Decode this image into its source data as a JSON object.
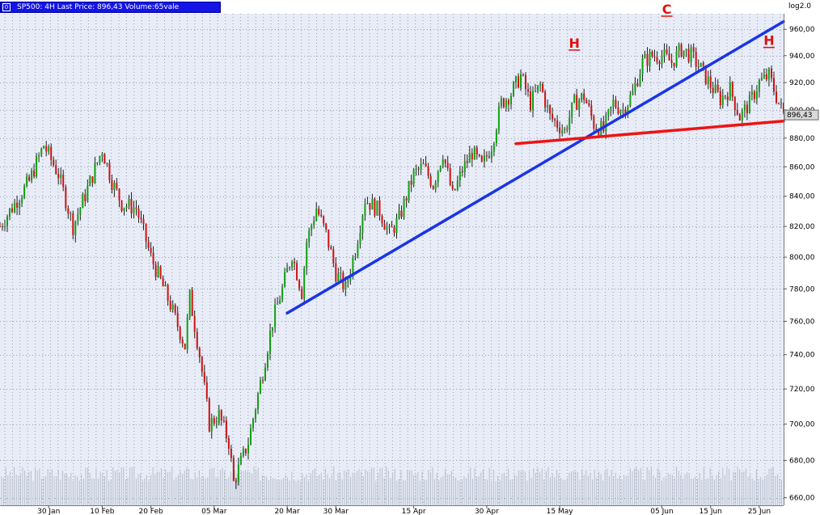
{
  "window": {
    "title": "SP500: 4H Last Price: 896,43 Volume:65vale",
    "scale_mode": "log2.0",
    "box_glyph": "0"
  },
  "chart_data": {
    "type": "candlestick",
    "symbol": "SP500",
    "timeframe": "4H",
    "last_price": "896,43",
    "yscale": "log",
    "ylim": [
      656,
      972
    ],
    "ytick_values": [
      660,
      680,
      700,
      720,
      740,
      760,
      780,
      800,
      820,
      840,
      860,
      880,
      900,
      920,
      940,
      960
    ],
    "ytick_labels": [
      "660,00",
      "680,00",
      "700,00",
      "720,00",
      "740,00",
      "760,00",
      "780,00",
      "800,00",
      "820,00",
      "840,00",
      "860,00",
      "880,00",
      "900,00",
      "920,00",
      "940,00",
      "960,00"
    ],
    "xlim": [
      "2009-01-20",
      "2009-06-30"
    ],
    "xticks": [
      {
        "date": "2009-01-30",
        "label": "30 Jan"
      },
      {
        "date": "2009-02-10",
        "label": "10 Feb"
      },
      {
        "date": "2009-02-20",
        "label": "20 Feb"
      },
      {
        "date": "2009-03-05",
        "label": "05 Mar"
      },
      {
        "date": "2009-03-20",
        "label": "20 Mar"
      },
      {
        "date": "2009-03-30",
        "label": "30 Mar"
      },
      {
        "date": "2009-04-15",
        "label": "15 Apr"
      },
      {
        "date": "2009-04-30",
        "label": "30 Apr"
      },
      {
        "date": "2009-05-15",
        "label": "15 May"
      },
      {
        "date": "2009-06-05",
        "label": "05 Jun"
      },
      {
        "date": "2009-06-15",
        "label": "15 Jun"
      },
      {
        "date": "2009-06-25",
        "label": "25 Jun"
      }
    ],
    "grid": true,
    "price_path": [
      [
        "2009-01-20",
        820
      ],
      [
        "2009-01-26",
        850
      ],
      [
        "2009-01-29",
        875
      ],
      [
        "2009-02-01",
        855
      ],
      [
        "2009-02-04",
        820
      ],
      [
        "2009-02-07",
        845
      ],
      [
        "2009-02-10",
        872
      ],
      [
        "2009-02-12",
        850
      ],
      [
        "2009-02-14",
        835
      ],
      [
        "2009-02-17",
        832
      ],
      [
        "2009-02-20",
        800
      ],
      [
        "2009-02-24",
        770
      ],
      [
        "2009-02-27",
        745
      ],
      [
        "2009-02-28",
        775
      ],
      [
        "2009-03-02",
        740
      ],
      [
        "2009-03-04",
        700
      ],
      [
        "2009-03-06",
        705
      ],
      [
        "2009-03-08",
        690
      ],
      [
        "2009-03-09",
        668
      ],
      [
        "2009-03-12",
        690
      ],
      [
        "2009-03-15",
        730
      ],
      [
        "2009-03-17",
        760
      ],
      [
        "2009-03-19",
        780
      ],
      [
        "2009-03-21",
        802
      ],
      [
        "2009-03-23",
        778
      ],
      [
        "2009-03-24",
        810
      ],
      [
        "2009-03-26",
        832
      ],
      [
        "2009-03-28",
        815
      ],
      [
        "2009-03-30",
        790
      ],
      [
        "2009-04-01",
        780
      ],
      [
        "2009-04-03",
        805
      ],
      [
        "2009-04-05",
        838
      ],
      [
        "2009-04-08",
        830
      ],
      [
        "2009-04-10",
        815
      ],
      [
        "2009-04-12",
        825
      ],
      [
        "2009-04-15",
        855
      ],
      [
        "2009-04-17",
        860
      ],
      [
        "2009-04-19",
        848
      ],
      [
        "2009-04-21",
        870
      ],
      [
        "2009-04-23",
        840
      ],
      [
        "2009-04-25",
        858
      ],
      [
        "2009-04-27",
        870
      ],
      [
        "2009-04-29",
        860
      ],
      [
        "2009-05-01",
        875
      ],
      [
        "2009-05-03",
        905
      ],
      [
        "2009-05-05",
        912
      ],
      [
        "2009-05-07",
        925
      ],
      [
        "2009-05-09",
        905
      ],
      [
        "2009-05-11",
        918
      ],
      [
        "2009-05-13",
        895
      ],
      [
        "2009-05-16",
        885
      ],
      [
        "2009-05-18",
        905
      ],
      [
        "2009-05-20",
        910
      ],
      [
        "2009-05-22",
        890
      ],
      [
        "2009-05-24",
        885
      ],
      [
        "2009-05-26",
        905
      ],
      [
        "2009-05-28",
        900
      ],
      [
        "2009-05-30",
        912
      ],
      [
        "2009-06-01",
        935
      ],
      [
        "2009-06-03",
        940
      ],
      [
        "2009-06-05",
        940
      ],
      [
        "2009-06-07",
        935
      ],
      [
        "2009-06-09",
        945
      ],
      [
        "2009-06-11",
        940
      ],
      [
        "2009-06-13",
        930
      ],
      [
        "2009-06-15",
        918
      ],
      [
        "2009-06-17",
        908
      ],
      [
        "2009-06-19",
        915
      ],
      [
        "2009-06-21",
        895
      ],
      [
        "2009-06-23",
        905
      ],
      [
        "2009-06-25",
        920
      ],
      [
        "2009-06-27",
        925
      ],
      [
        "2009-06-29",
        905
      ],
      [
        "2009-06-30",
        897
      ]
    ],
    "trendlines": [
      {
        "color": "#1a34e6",
        "from": [
          "2009-03-20",
          765
        ],
        "to": [
          "2009-06-30",
          966
        ]
      },
      {
        "color": "#ee1414",
        "from": [
          "2009-05-06",
          876
        ],
        "to": [
          "2009-06-30",
          892
        ]
      }
    ],
    "pattern_labels": [
      {
        "text": "H",
        "date": "2009-05-18",
        "price": 946
      },
      {
        "text": "C",
        "date": "2009-06-06",
        "price": 972
      },
      {
        "text": "H",
        "date": "2009-06-27",
        "price": 948
      }
    ],
    "last_price_tag": {
      "price": 896.43,
      "label": "896,43"
    }
  }
}
